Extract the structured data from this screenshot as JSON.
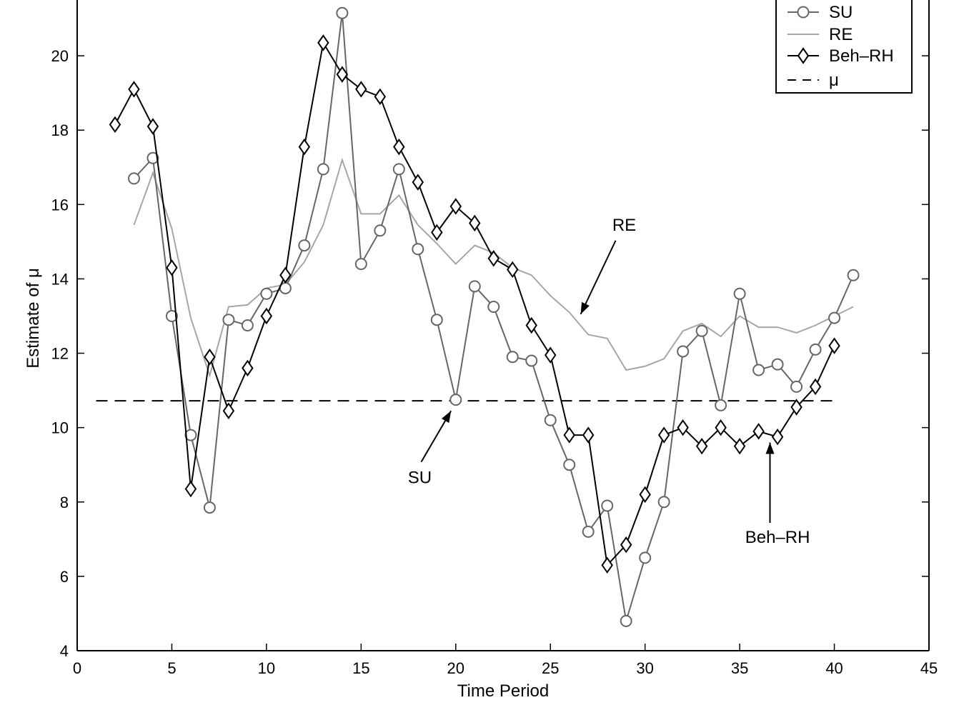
{
  "chart_data": {
    "type": "line",
    "title": "",
    "xlabel": "Time Period",
    "ylabel": "Estimate of μ",
    "xlim": [
      0,
      45
    ],
    "ylim": [
      4,
      21.5
    ],
    "xticks": [
      0,
      5,
      10,
      15,
      20,
      25,
      30,
      35,
      40,
      45
    ],
    "yticks": [
      4,
      6,
      8,
      10,
      12,
      14,
      16,
      18,
      20
    ],
    "grid": false,
    "legend_position": "top-right",
    "colors": {
      "SU": "#666666",
      "RE": "#a6a6a6",
      "Beh-RH": "#000000",
      "mu": "#000000"
    },
    "series": [
      {
        "name": "SU",
        "marker": "circle",
        "x": [
          3,
          4,
          5,
          6,
          7,
          8,
          9,
          10,
          11,
          12,
          13,
          14,
          15,
          16,
          17,
          18,
          19,
          20,
          21,
          22,
          23,
          24,
          25,
          26,
          27,
          28,
          29,
          30,
          31,
          32,
          33,
          34,
          35,
          36,
          37,
          38,
          39,
          40,
          41
        ],
        "values": [
          16.7,
          17.25,
          13.0,
          9.8,
          7.85,
          12.9,
          12.75,
          13.6,
          13.75,
          14.9,
          16.95,
          21.15,
          14.4,
          15.3,
          16.95,
          14.8,
          12.9,
          10.75,
          13.8,
          13.25,
          11.9,
          11.8,
          10.2,
          9.0,
          7.2,
          7.9,
          4.8,
          6.5,
          8.0,
          12.05,
          12.6,
          10.6,
          13.6,
          11.55,
          11.7,
          11.1,
          12.1,
          12.95,
          14.1
        ]
      },
      {
        "name": "RE",
        "marker": "none",
        "x": [
          3,
          4,
          5,
          6,
          7,
          8,
          9,
          10,
          11,
          12,
          13,
          14,
          15,
          16,
          17,
          18,
          19,
          20,
          21,
          22,
          23,
          24,
          25,
          26,
          27,
          28,
          29,
          30,
          31,
          32,
          33,
          34,
          35,
          36,
          37,
          38,
          39,
          40,
          41
        ],
        "values": [
          15.45,
          16.85,
          15.35,
          12.95,
          11.4,
          13.25,
          13.3,
          13.75,
          13.85,
          14.45,
          15.45,
          17.2,
          15.75,
          15.75,
          16.25,
          15.45,
          14.95,
          14.4,
          14.9,
          14.7,
          14.3,
          14.1,
          13.55,
          13.1,
          12.5,
          12.4,
          11.55,
          11.65,
          11.85,
          12.6,
          12.8,
          12.45,
          13.0,
          12.7,
          12.7,
          12.55,
          12.75,
          13.0,
          13.25
        ]
      },
      {
        "name": "Beh–RH",
        "marker": "diamond",
        "x": [
          2,
          3,
          4,
          5,
          6,
          7,
          8,
          9,
          10,
          11,
          12,
          13,
          14,
          15,
          16,
          17,
          18,
          19,
          20,
          21,
          22,
          23,
          24,
          25,
          26,
          27,
          28,
          29,
          30,
          31,
          32,
          33,
          34,
          35,
          36,
          37,
          38,
          39,
          40
        ],
        "values": [
          18.15,
          19.1,
          18.1,
          14.3,
          8.35,
          11.9,
          10.45,
          11.6,
          13.0,
          14.1,
          17.55,
          20.35,
          19.5,
          19.1,
          18.9,
          17.55,
          16.6,
          15.25,
          15.95,
          15.5,
          14.55,
          14.25,
          12.75,
          11.95,
          9.8,
          9.8,
          6.3,
          6.85,
          8.2,
          9.8,
          10.0,
          9.5,
          10.0,
          9.5,
          9.9,
          9.75,
          10.55,
          11.1,
          12.2
        ]
      },
      {
        "name": "μ",
        "marker": "none",
        "linestyle": "dashed",
        "x": [
          1,
          40
        ],
        "values": [
          10.72,
          10.72
        ]
      }
    ],
    "annotations": [
      {
        "label": "RE",
        "text_at": [
          28.9,
          15.3
        ],
        "arrow_tip": [
          26.6,
          13.05
        ]
      },
      {
        "label": "SU",
        "text_at": [
          18.1,
          8.5
        ],
        "arrow_tip": [
          19.75,
          10.45
        ]
      },
      {
        "label": "Beh–RH",
        "text_at": [
          37.0,
          6.9
        ],
        "arrow_tip": [
          36.6,
          9.6
        ]
      }
    ]
  }
}
